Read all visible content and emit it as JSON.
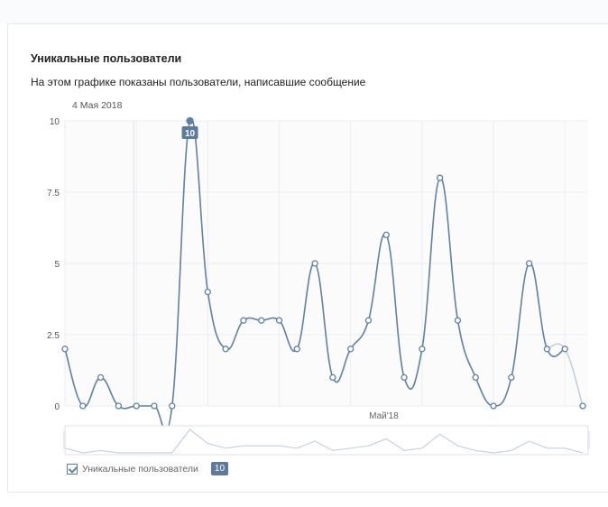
{
  "header": {
    "title": "Уникальные пользователи",
    "subtitle": "На этом графике показаны пользователи, написавшие сообщение"
  },
  "tooltip": {
    "date": "4 Мая 2018",
    "value": "10"
  },
  "legend": {
    "label": "Уникальные пользователи",
    "value": "10",
    "checked": true
  },
  "colors": {
    "line": "#5e81a8",
    "tooltip_bg": "#5c7a99",
    "grid": "#ebedf0",
    "navigator": "#c6d2de"
  },
  "chart_data": {
    "type": "line",
    "title": "Уникальные пользователи",
    "x_tick_labels": [
      "Май'18"
    ],
    "y_ticks": [
      "0",
      "2.5",
      "5",
      "7.5",
      "10"
    ],
    "ylim": [
      0,
      10
    ],
    "grid": true,
    "series": [
      {
        "name": "Уникальные пользователи",
        "values": [
          2,
          0,
          1,
          0,
          0,
          0,
          0,
          10,
          4,
          2,
          3,
          3,
          3,
          2,
          5,
          1,
          2,
          3,
          6,
          1,
          2,
          8,
          3,
          1,
          0,
          1,
          5,
          2,
          2,
          0
        ]
      }
    ],
    "highlight_index": 7,
    "annotation_index": 22,
    "annotation": "Май'18"
  }
}
